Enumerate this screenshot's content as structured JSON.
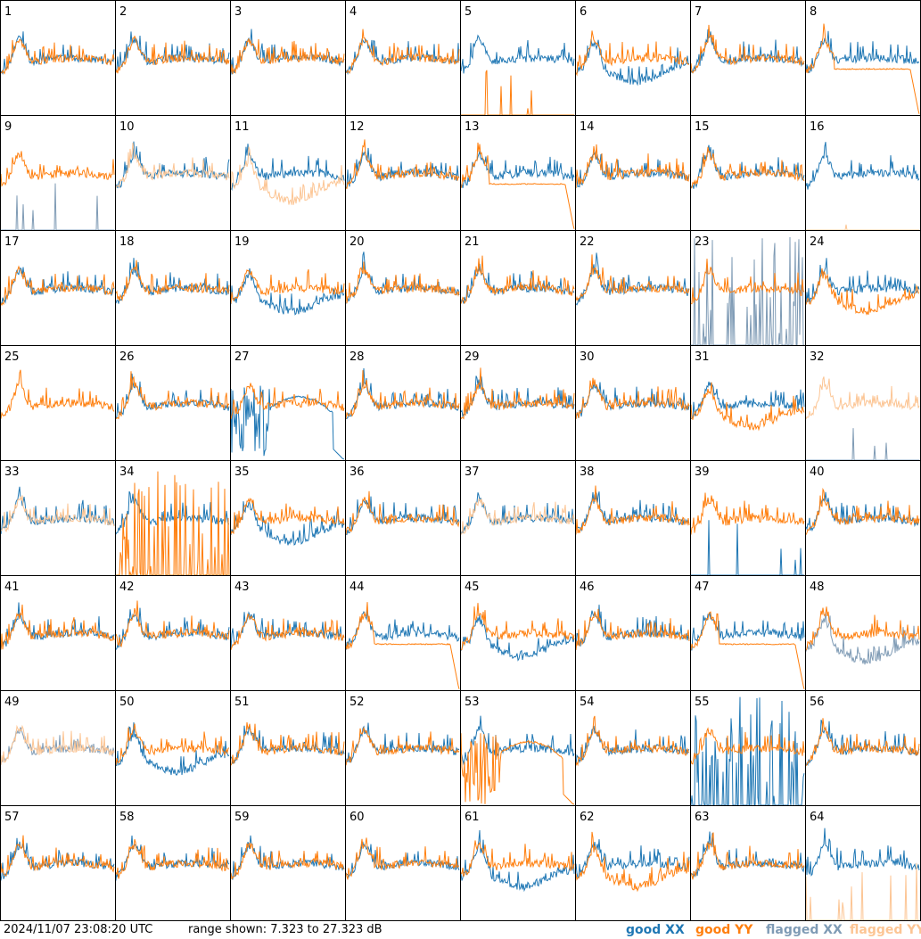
{
  "chart_data": {
    "type": "line",
    "grid": "8x8 small multiples",
    "panel_labels": [
      "1",
      "2",
      "3",
      "4",
      "5",
      "6",
      "7",
      "8",
      "9",
      "10",
      "11",
      "12",
      "13",
      "14",
      "15",
      "16",
      "17",
      "18",
      "19",
      "20",
      "21",
      "22",
      "23",
      "24",
      "25",
      "26",
      "27",
      "28",
      "29",
      "30",
      "31",
      "32",
      "33",
      "34",
      "35",
      "36",
      "37",
      "38",
      "39",
      "40",
      "41",
      "42",
      "43",
      "44",
      "45",
      "46",
      "47",
      "48",
      "49",
      "50",
      "51",
      "52",
      "53",
      "54",
      "55",
      "56",
      "57",
      "58",
      "59",
      "60",
      "61",
      "62",
      "63",
      "64"
    ],
    "y_range_db": [
      7.323,
      27.323
    ],
    "panels": {
      "5": {
        "xx": "good",
        "yy": "spikes"
      },
      "6": {
        "xx": "low",
        "yy": "good"
      },
      "8": {
        "xx": "good",
        "yy": "flat"
      },
      "9": {
        "xx": "flagged-spikes",
        "yy": "good"
      },
      "10": {
        "xx": "good",
        "yy": "flagged"
      },
      "11": {
        "xx": "good",
        "yy": "flagged-low"
      },
      "13": {
        "xx": "good",
        "yy": "flat"
      },
      "16": {
        "xx": "good",
        "yy": "flagged-spikes"
      },
      "19": {
        "xx": "low",
        "yy": "good"
      },
      "23": {
        "xx": "flagged-chaos",
        "yy": "good"
      },
      "24": {
        "xx": "good",
        "yy": "low"
      },
      "25": {
        "xx": "none",
        "yy": "good"
      },
      "27": {
        "xx": "chaos-curve",
        "yy": "good"
      },
      "31": {
        "xx": "good",
        "yy": "low"
      },
      "32": {
        "xx": "flagged-spikes",
        "yy": "flagged"
      },
      "33": {
        "xx": "good",
        "yy": "flagged"
      },
      "34": {
        "xx": "good",
        "yy": "chaos-spikes"
      },
      "35": {
        "xx": "low",
        "yy": "good"
      },
      "37": {
        "xx": "good",
        "yy": "flagged"
      },
      "39": {
        "xx": "spikes",
        "yy": "good"
      },
      "44": {
        "xx": "good",
        "yy": "flat"
      },
      "45": {
        "xx": "low",
        "yy": "good"
      },
      "47": {
        "xx": "good",
        "yy": "flat"
      },
      "48": {
        "xx": "flagged-low",
        "yy": "good"
      },
      "49": {
        "xx": "flagged",
        "yy": "flagged"
      },
      "50": {
        "xx": "low",
        "yy": "good"
      },
      "53": {
        "xx": "good",
        "yy": "chaos-curve"
      },
      "55": {
        "xx": "chaos-spikes",
        "yy": "good"
      },
      "61": {
        "xx": "low",
        "yy": "good"
      },
      "62": {
        "xx": "good",
        "yy": "low"
      },
      "64": {
        "xx": "good",
        "yy": "flagged-spikes"
      }
    },
    "legend": [
      {
        "label": "good XX",
        "color": "#1f77b4"
      },
      {
        "label": "good YY",
        "color": "#ff7f0e"
      },
      {
        "label": "flagged XX",
        "color": "#7f9bb5"
      },
      {
        "label": "flagged YY",
        "color": "#fcc594"
      }
    ],
    "legend_placement": "bottom-right"
  },
  "footer": {
    "timestamp": "2024/11/07 23:08:20 UTC",
    "range_text": "range shown: 7.323 to 27.323 dB"
  },
  "colors": {
    "good_xx": "#1f77b4",
    "good_yy": "#ff7f0e",
    "flagged_xx": "#7f9bb5",
    "flagged_yy": "#fcc594"
  }
}
